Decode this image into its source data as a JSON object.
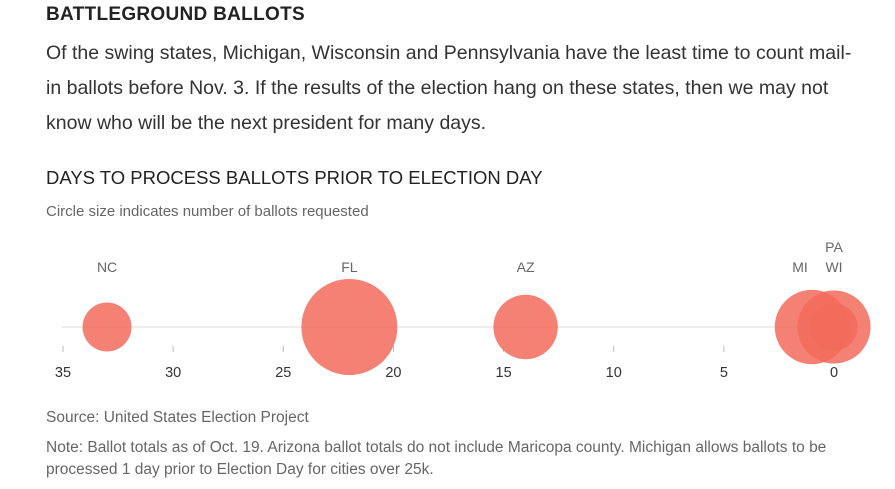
{
  "header": {
    "kicker": "BATTLEGROUND BALLOTS",
    "dek": "Of the swing states, Michigan, Wisconsin and Pennsylvania have the least time to count mail-in ballots before Nov. 3. If the results of the election hang on these states, then we may not know who will be the next president for many days."
  },
  "chart_data": {
    "type": "scatter",
    "title": "DAYS TO PROCESS BALLOTS PRIOR TO ELECTION DAY",
    "subtitle": "Circle size indicates number of ballots requested",
    "xlabel": "",
    "ylabel": "",
    "xlim": [
      35,
      0
    ],
    "xticks": [
      35,
      30,
      25,
      20,
      15,
      10,
      5,
      0
    ],
    "grid": false,
    "color": "#f26b5b",
    "points": [
      {
        "label": "NC",
        "days": 33,
        "size_rel": 0.26
      },
      {
        "label": "FL",
        "days": 22,
        "size_rel": 1.0
      },
      {
        "label": "AZ",
        "days": 14,
        "size_rel": 0.45
      },
      {
        "label": "MI",
        "days": 1,
        "size_rel": 0.6
      },
      {
        "label": "PA",
        "days": 0,
        "size_rel": 0.58
      },
      {
        "label": "WI",
        "days": 0,
        "size_rel": 0.24
      }
    ]
  },
  "footer": {
    "source": "Source: United States Election Project",
    "note": "Note: Ballot totals as of Oct. 19. Arizona ballot totals do not include Maricopa county. Michigan allows ballots to be processed 1 day prior to Election Day for cities over 25k."
  }
}
